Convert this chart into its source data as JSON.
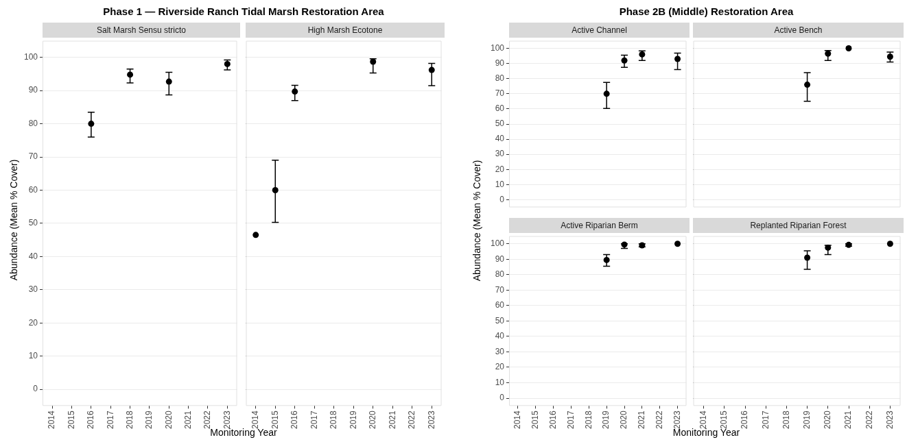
{
  "chart_data": [
    {
      "type": "scatter",
      "title": "Salt Marsh Sensu stricto",
      "annotations": [
        "Phase 1 — Riverside Ranch Tidal Marsh Restoration Area"
      ],
      "xlabel": "Monitoring Year",
      "ylabel": "Abundance (Mean % Cover)",
      "categories": [
        "2014",
        "2015",
        "2016",
        "2017",
        "2018",
        "2019",
        "2020",
        "2021",
        "2022",
        "2023"
      ],
      "color": "#000000",
      "values": [
        null,
        null,
        80,
        null,
        94.8,
        null,
        92.7,
        null,
        null,
        98
      ],
      "errors": [
        null,
        null,
        [
          76,
          83.5
        ],
        null,
        [
          92.3,
          96.5
        ],
        null,
        [
          88.7,
          95.5
        ],
        null,
        null,
        [
          96.2,
          99.2
        ]
      ],
      "ylim": [
        -5,
        105
      ],
      "yticks": [
        0,
        10,
        20,
        30,
        40,
        50,
        60,
        70,
        80,
        90,
        100
      ],
      "grid": "y",
      "marker": "circle"
    },
    {
      "type": "scatter",
      "title": "High Marsh Ecotone",
      "categories": [
        "2014",
        "2015",
        "2016",
        "2017",
        "2018",
        "2019",
        "2020",
        "2021",
        "2022",
        "2023"
      ],
      "color": "#000000",
      "values": [
        46.5,
        60,
        89.7,
        null,
        null,
        null,
        98.7,
        null,
        null,
        96.2
      ],
      "errors": [
        null,
        [
          50.3,
          69
        ],
        [
          87,
          91.6
        ],
        null,
        null,
        null,
        [
          95.3,
          99.6
        ],
        null,
        null,
        [
          91.5,
          98.2
        ]
      ],
      "ylim": [
        -5,
        105
      ],
      "yticks": [
        0,
        10,
        20,
        30,
        40,
        50,
        60,
        70,
        80,
        90,
        100
      ],
      "grid": "y",
      "marker": "circle",
      "tick_labels": "x"
    },
    {
      "type": "scatter",
      "title": "Active Channel",
      "annotations": [
        "Phase 2B (Middle) Restoration Area"
      ],
      "ylabel": "Abundance (Mean % Cover)",
      "categories": [
        "2014",
        "2015",
        "2016",
        "2017",
        "2018",
        "2019",
        "2020",
        "2021",
        "2022",
        "2023"
      ],
      "color": "#000000",
      "values": [
        null,
        null,
        null,
        null,
        null,
        70,
        92,
        96,
        null,
        93
      ],
      "errors": [
        null,
        null,
        null,
        null,
        null,
        [
          60.3,
          77.5
        ],
        [
          87.5,
          95.5
        ],
        [
          92,
          98.3
        ],
        null,
        [
          86,
          96.8
        ]
      ],
      "ylim": [
        -5,
        105
      ],
      "yticks": [
        0,
        10,
        20,
        30,
        40,
        50,
        60,
        70,
        80,
        90,
        100
      ],
      "grid": "y",
      "marker": "circle",
      "tick_labels": "y"
    },
    {
      "type": "scatter",
      "title": "Active Bench",
      "categories": [
        "2014",
        "2015",
        "2016",
        "2017",
        "2018",
        "2019",
        "2020",
        "2021",
        "2022",
        "2023"
      ],
      "color": "#000000",
      "values": [
        null,
        null,
        null,
        null,
        null,
        76,
        96.5,
        100,
        null,
        94.5
      ],
      "errors": [
        null,
        null,
        null,
        null,
        null,
        [
          65,
          84
        ],
        [
          92,
          98.5
        ],
        null,
        null,
        [
          91,
          97.5
        ]
      ],
      "ylim": [
        -5,
        105
      ],
      "yticks": [
        0,
        10,
        20,
        30,
        40,
        50,
        60,
        70,
        80,
        90,
        100
      ],
      "grid": "y",
      "marker": "circle",
      "tick_labels": false
    },
    {
      "type": "scatter",
      "title": "Active Riparian Berm",
      "xlabel": "Monitoring Year",
      "categories": [
        "2014",
        "2015",
        "2016",
        "2017",
        "2018",
        "2019",
        "2020",
        "2021",
        "2022",
        "2023"
      ],
      "color": "#000000",
      "values": [
        null,
        null,
        null,
        null,
        null,
        89.5,
        99.5,
        99,
        null,
        100
      ],
      "errors": [
        null,
        null,
        null,
        null,
        null,
        [
          85.5,
          93
        ],
        [
          97,
          100
        ],
        [
          98,
          100
        ],
        null,
        null
      ],
      "ylim": [
        -5,
        105
      ],
      "yticks": [
        0,
        10,
        20,
        30,
        40,
        50,
        60,
        70,
        80,
        90,
        100
      ],
      "grid": "y",
      "marker": "circle"
    },
    {
      "type": "scatter",
      "title": "Replanted Riparian Forest",
      "categories": [
        "2014",
        "2015",
        "2016",
        "2017",
        "2018",
        "2019",
        "2020",
        "2021",
        "2022",
        "2023"
      ],
      "color": "#000000",
      "values": [
        null,
        null,
        null,
        null,
        null,
        91,
        97.5,
        99.3,
        null,
        100
      ],
      "errors": [
        null,
        null,
        null,
        null,
        null,
        [
          83.5,
          95.5
        ],
        [
          93,
          99
        ],
        [
          98.5,
          100
        ],
        null,
        null
      ],
      "ylim": [
        -5,
        105
      ],
      "yticks": [
        0,
        10,
        20,
        30,
        40,
        50,
        60,
        70,
        80,
        90,
        100
      ],
      "grid": "y",
      "marker": "circle",
      "tick_labels": "x"
    }
  ]
}
